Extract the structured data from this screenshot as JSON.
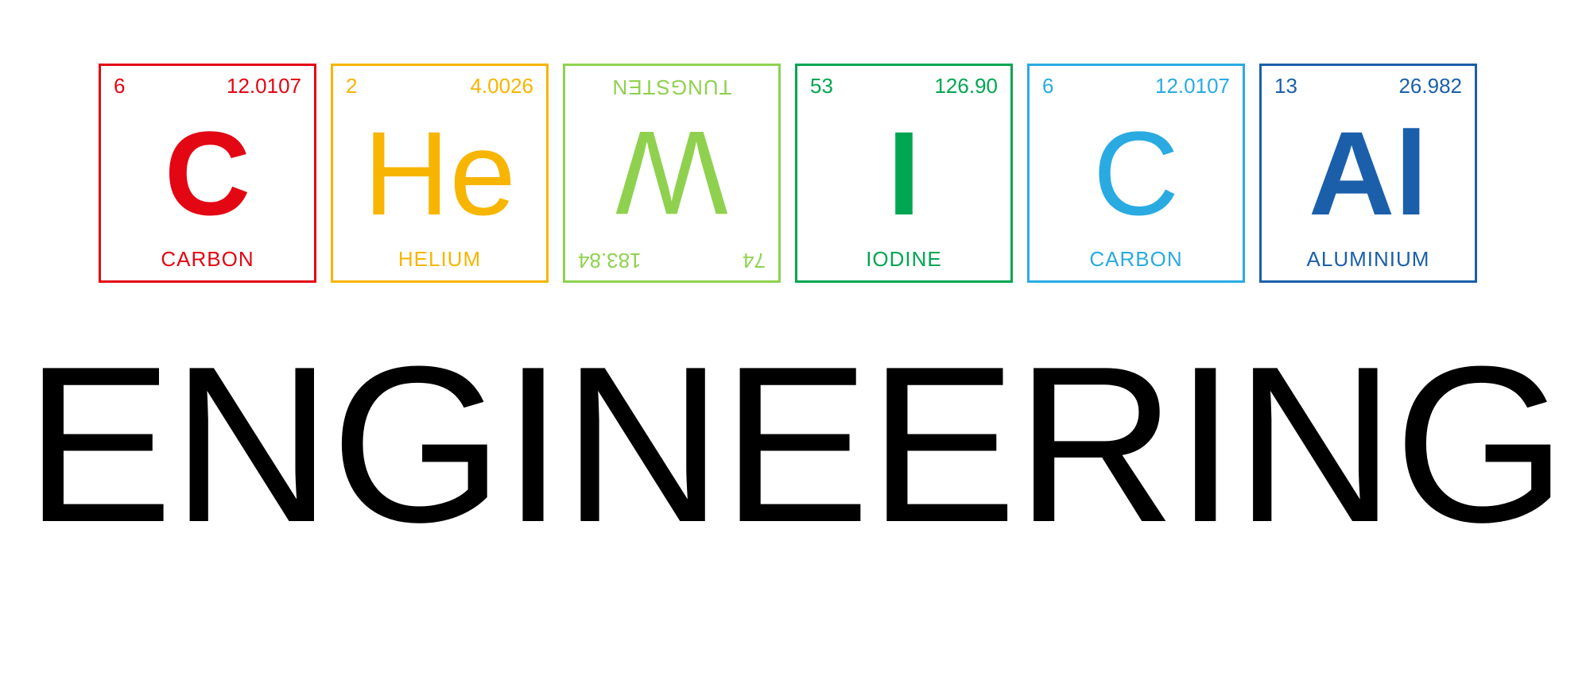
{
  "elements": [
    {
      "atomic_number": "6",
      "mass": "12.0107",
      "symbol": "C",
      "name": "CARBON",
      "color": "#e30613",
      "flipped": false,
      "bold": true
    },
    {
      "atomic_number": "2",
      "mass": "4.0026",
      "symbol": "He",
      "name": "HELIUM",
      "color": "#f7b500",
      "flipped": false,
      "bold": false
    },
    {
      "atomic_number": "74",
      "mass": "183.84",
      "symbol": "W",
      "name": "TUNGSTEN",
      "color": "#8fd14f",
      "flipped": true,
      "bold": false
    },
    {
      "atomic_number": "53",
      "mass": "126.90",
      "symbol": "I",
      "name": "IODINE",
      "color": "#00a651",
      "flipped": false,
      "bold": true
    },
    {
      "atomic_number": "6",
      "mass": "12.0107",
      "symbol": "C",
      "name": "CARBON",
      "color": "#29abe2",
      "flipped": false,
      "bold": false
    },
    {
      "atomic_number": "13",
      "mass": "26.982",
      "symbol": "Al",
      "name": "ALUMINIUM",
      "color": "#1b5faa",
      "flipped": false,
      "bold": true
    }
  ],
  "subtitle": "ENGINEERING",
  "background_color": "#ffffff",
  "subtitle_color": "#000000"
}
